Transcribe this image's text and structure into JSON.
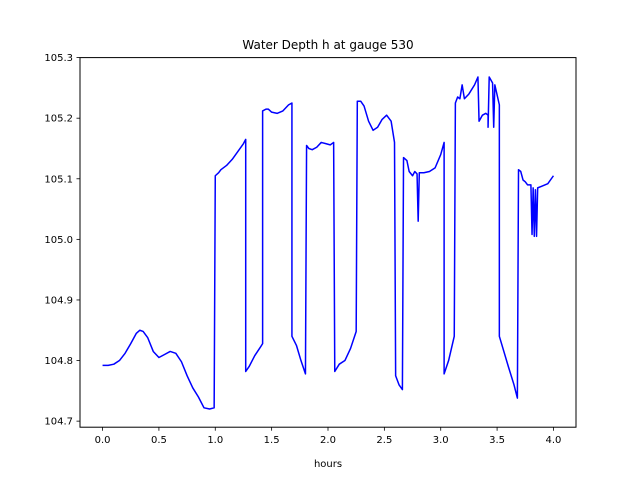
{
  "chart_data": {
    "type": "line",
    "title": "Water Depth h at gauge 530",
    "xlabel": "hours",
    "ylabel": "",
    "xlim": [
      -0.2,
      4.2
    ],
    "ylim": [
      104.69,
      105.3
    ],
    "xticks": [
      0.0,
      0.5,
      1.0,
      1.5,
      2.0,
      2.5,
      3.0,
      3.5,
      4.0
    ],
    "xtick_labels": [
      "0.0",
      "0.5",
      "1.0",
      "1.5",
      "2.0",
      "2.5",
      "3.0",
      "3.5",
      "4.0"
    ],
    "yticks": [
      104.7,
      104.8,
      104.9,
      105.0,
      105.1,
      105.2,
      105.3
    ],
    "ytick_labels": [
      "104.7",
      "104.8",
      "104.9",
      "105.0",
      "105.1",
      "105.2",
      "105.3"
    ],
    "grid": false,
    "series": [
      {
        "color": "#0000ff",
        "points": [
          [
            0.0,
            104.792
          ],
          [
            0.05,
            104.792
          ],
          [
            0.1,
            104.794
          ],
          [
            0.15,
            104.8
          ],
          [
            0.2,
            104.812
          ],
          [
            0.25,
            104.828
          ],
          [
            0.3,
            104.845
          ],
          [
            0.33,
            104.85
          ],
          [
            0.36,
            104.848
          ],
          [
            0.4,
            104.838
          ],
          [
            0.45,
            104.815
          ],
          [
            0.5,
            104.805
          ],
          [
            0.55,
            104.81
          ],
          [
            0.6,
            104.815
          ],
          [
            0.65,
            104.812
          ],
          [
            0.7,
            104.798
          ],
          [
            0.75,
            104.775
          ],
          [
            0.8,
            104.755
          ],
          [
            0.85,
            104.74
          ],
          [
            0.9,
            104.722
          ],
          [
            0.95,
            104.72
          ],
          [
            0.99,
            104.722
          ],
          [
            1.0,
            105.105
          ],
          [
            1.03,
            105.11
          ],
          [
            1.05,
            105.115
          ],
          [
            1.1,
            105.122
          ],
          [
            1.15,
            105.132
          ],
          [
            1.2,
            105.145
          ],
          [
            1.25,
            105.158
          ],
          [
            1.27,
            105.165
          ],
          [
            1.27,
            104.782
          ],
          [
            1.3,
            104.79
          ],
          [
            1.35,
            104.808
          ],
          [
            1.4,
            104.822
          ],
          [
            1.42,
            104.828
          ],
          [
            1.42,
            105.212
          ],
          [
            1.45,
            105.215
          ],
          [
            1.47,
            105.215
          ],
          [
            1.5,
            105.21
          ],
          [
            1.55,
            105.208
          ],
          [
            1.6,
            105.212
          ],
          [
            1.65,
            105.222
          ],
          [
            1.68,
            105.225
          ],
          [
            1.68,
            104.84
          ],
          [
            1.72,
            104.825
          ],
          [
            1.76,
            104.8
          ],
          [
            1.8,
            104.778
          ],
          [
            1.81,
            105.155
          ],
          [
            1.83,
            105.15
          ],
          [
            1.86,
            105.148
          ],
          [
            1.9,
            105.152
          ],
          [
            1.94,
            105.16
          ],
          [
            1.98,
            105.158
          ],
          [
            2.02,
            105.156
          ],
          [
            2.05,
            105.16
          ],
          [
            2.06,
            104.782
          ],
          [
            2.1,
            104.794
          ],
          [
            2.15,
            104.8
          ],
          [
            2.2,
            104.82
          ],
          [
            2.25,
            104.848
          ],
          [
            2.26,
            105.228
          ],
          [
            2.29,
            105.228
          ],
          [
            2.32,
            105.22
          ],
          [
            2.36,
            105.195
          ],
          [
            2.4,
            105.18
          ],
          [
            2.44,
            105.185
          ],
          [
            2.48,
            105.198
          ],
          [
            2.52,
            105.205
          ],
          [
            2.56,
            105.195
          ],
          [
            2.59,
            105.16
          ],
          [
            2.6,
            104.775
          ],
          [
            2.63,
            104.76
          ],
          [
            2.66,
            104.752
          ],
          [
            2.67,
            105.135
          ],
          [
            2.7,
            105.13
          ],
          [
            2.72,
            105.112
          ],
          [
            2.75,
            105.105
          ],
          [
            2.77,
            105.112
          ],
          [
            2.79,
            105.108
          ],
          [
            2.8,
            105.03
          ],
          [
            2.81,
            105.11
          ],
          [
            2.85,
            105.11
          ],
          [
            2.9,
            105.112
          ],
          [
            2.95,
            105.118
          ],
          [
            3.0,
            105.14
          ],
          [
            3.03,
            105.16
          ],
          [
            3.03,
            104.778
          ],
          [
            3.07,
            104.8
          ],
          [
            3.12,
            104.84
          ],
          [
            3.13,
            105.225
          ],
          [
            3.15,
            105.235
          ],
          [
            3.17,
            105.232
          ],
          [
            3.19,
            105.255
          ],
          [
            3.21,
            105.232
          ],
          [
            3.25,
            105.24
          ],
          [
            3.3,
            105.255
          ],
          [
            3.33,
            105.268
          ],
          [
            3.34,
            105.195
          ],
          [
            3.37,
            105.205
          ],
          [
            3.4,
            105.208
          ],
          [
            3.42,
            105.205
          ],
          [
            3.42,
            105.185
          ],
          [
            3.43,
            105.268
          ],
          [
            3.46,
            105.258
          ],
          [
            3.47,
            105.185
          ],
          [
            3.48,
            105.255
          ],
          [
            3.52,
            105.222
          ],
          [
            3.52,
            104.84
          ],
          [
            3.56,
            104.815
          ],
          [
            3.6,
            104.79
          ],
          [
            3.65,
            104.76
          ],
          [
            3.68,
            104.738
          ],
          [
            3.69,
            105.115
          ],
          [
            3.71,
            105.112
          ],
          [
            3.73,
            105.098
          ],
          [
            3.75,
            105.095
          ],
          [
            3.77,
            105.09
          ],
          [
            3.8,
            105.09
          ],
          [
            3.81,
            105.008
          ],
          [
            3.82,
            105.085
          ],
          [
            3.83,
            105.005
          ],
          [
            3.84,
            105.082
          ],
          [
            3.85,
            105.005
          ],
          [
            3.86,
            105.085
          ],
          [
            3.9,
            105.088
          ],
          [
            3.95,
            105.092
          ],
          [
            4.0,
            105.105
          ]
        ]
      }
    ]
  }
}
